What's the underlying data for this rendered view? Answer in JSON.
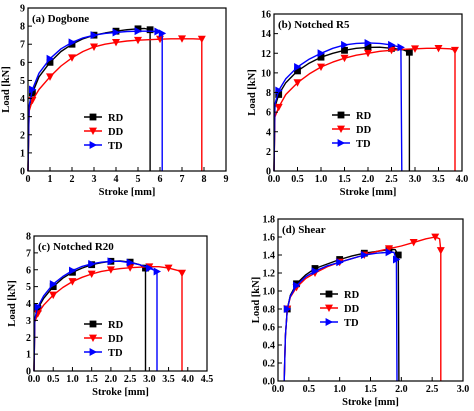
{
  "colors": {
    "RD": "#000000",
    "DD": "#ff0000",
    "TD": "#0000ff"
  },
  "chart_data": [
    {
      "type": "line",
      "title": "(a) Dogbone",
      "xlabel": "Stroke [mm]",
      "ylabel": "Load [kN]",
      "xlim": [
        0,
        9
      ],
      "ylim": [
        0,
        9
      ],
      "xticks": [
        "0",
        "1",
        "2",
        "3",
        "4",
        "5",
        "6",
        "7",
        "8",
        "9"
      ],
      "yticks": [
        "0",
        "1",
        "2",
        "3",
        "4",
        "5",
        "6",
        "7",
        "8",
        "9"
      ],
      "legend": "center-right",
      "series": [
        {
          "name": "RD",
          "marker": "square",
          "points": [
            [
              0,
              0
            ],
            [
              0.05,
              3.5
            ],
            [
              0.2,
              4.3
            ],
            [
              0.5,
              5.2
            ],
            [
              1,
              6.0
            ],
            [
              1.5,
              6.6
            ],
            [
              2,
              7.0
            ],
            [
              2.5,
              7.3
            ],
            [
              3,
              7.5
            ],
            [
              3.5,
              7.62
            ],
            [
              4,
              7.72
            ],
            [
              4.5,
              7.8
            ],
            [
              5,
              7.85
            ],
            [
              5.3,
              7.87
            ],
            [
              5.55,
              7.8
            ],
            [
              5.55,
              0
            ]
          ]
        },
        {
          "name": "DD",
          "marker": "triangle-down",
          "points": [
            [
              0,
              0
            ],
            [
              0.05,
              3.3
            ],
            [
              0.2,
              3.9
            ],
            [
              0.5,
              4.5
            ],
            [
              1,
              5.2
            ],
            [
              1.5,
              5.8
            ],
            [
              2,
              6.25
            ],
            [
              2.5,
              6.6
            ],
            [
              3,
              6.85
            ],
            [
              3.5,
              7.0
            ],
            [
              4,
              7.1
            ],
            [
              4.5,
              7.18
            ],
            [
              5,
              7.22
            ],
            [
              5.5,
              7.25
            ],
            [
              6,
              7.28
            ],
            [
              6.5,
              7.3
            ],
            [
              7,
              7.3
            ],
            [
              7.5,
              7.3
            ],
            [
              7.9,
              7.28
            ],
            [
              7.9,
              0
            ]
          ]
        },
        {
          "name": "TD",
          "marker": "triangle-right",
          "points": [
            [
              0,
              0
            ],
            [
              0.05,
              3.6
            ],
            [
              0.2,
              4.5
            ],
            [
              0.5,
              5.4
            ],
            [
              1,
              6.2
            ],
            [
              1.5,
              6.75
            ],
            [
              2,
              7.1
            ],
            [
              2.5,
              7.35
            ],
            [
              3,
              7.5
            ],
            [
              3.5,
              7.6
            ],
            [
              4,
              7.65
            ],
            [
              4.5,
              7.7
            ],
            [
              5,
              7.72
            ],
            [
              5.5,
              7.72
            ],
            [
              5.9,
              7.7
            ],
            [
              6.1,
              7.6
            ],
            [
              6.1,
              0
            ]
          ]
        }
      ]
    },
    {
      "type": "line",
      "title": "(b) Notched R5",
      "xlabel": "Stroke [mm]",
      "ylabel": "Load [kN]",
      "xlim": [
        0,
        4
      ],
      "ylim": [
        0,
        16
      ],
      "xticks": [
        "0.0",
        "0.5",
        "1.0",
        "1.5",
        "2.0",
        "2.5",
        "3.0",
        "3.5",
        "4.0"
      ],
      "yticks": [
        "0",
        "2",
        "4",
        "6",
        "8",
        "10",
        "12",
        "14",
        "16"
      ],
      "legend": "center-right",
      "series": [
        {
          "name": "RD",
          "marker": "square",
          "points": [
            [
              0,
              0
            ],
            [
              0.02,
              6.5
            ],
            [
              0.1,
              7.8
            ],
            [
              0.25,
              9.0
            ],
            [
              0.5,
              10.2
            ],
            [
              0.75,
              11.0
            ],
            [
              1.0,
              11.6
            ],
            [
              1.25,
              12.0
            ],
            [
              1.5,
              12.3
            ],
            [
              1.75,
              12.5
            ],
            [
              2.0,
              12.6
            ],
            [
              2.25,
              12.62
            ],
            [
              2.5,
              12.5
            ],
            [
              2.75,
              12.35
            ],
            [
              2.88,
              12.1
            ],
            [
              2.88,
              0
            ]
          ]
        },
        {
          "name": "DD",
          "marker": "triangle-down",
          "points": [
            [
              0,
              0
            ],
            [
              0.02,
              5.5
            ],
            [
              0.1,
              6.5
            ],
            [
              0.25,
              7.8
            ],
            [
              0.5,
              9.0
            ],
            [
              0.75,
              9.9
            ],
            [
              1.0,
              10.6
            ],
            [
              1.25,
              11.1
            ],
            [
              1.5,
              11.5
            ],
            [
              1.75,
              11.8
            ],
            [
              2.0,
              12.0
            ],
            [
              2.25,
              12.2
            ],
            [
              2.5,
              12.3
            ],
            [
              2.75,
              12.4
            ],
            [
              3.0,
              12.45
            ],
            [
              3.25,
              12.5
            ],
            [
              3.5,
              12.5
            ],
            [
              3.75,
              12.45
            ],
            [
              3.85,
              12.3
            ],
            [
              3.85,
              0
            ]
          ]
        },
        {
          "name": "TD",
          "marker": "triangle-right",
          "points": [
            [
              0,
              0
            ],
            [
              0.02,
              6.8
            ],
            [
              0.1,
              8.2
            ],
            [
              0.25,
              9.4
            ],
            [
              0.5,
              10.6
            ],
            [
              0.75,
              11.4
            ],
            [
              1.0,
              12.0
            ],
            [
              1.25,
              12.5
            ],
            [
              1.5,
              12.85
            ],
            [
              1.75,
              13.0
            ],
            [
              2.0,
              13.05
            ],
            [
              2.25,
              13.0
            ],
            [
              2.5,
              12.85
            ],
            [
              2.7,
              12.6
            ],
            [
              2.72,
              0
            ]
          ]
        }
      ]
    },
    {
      "type": "line",
      "title": "(c) Notched R20",
      "xlabel": "Stroke [mm]",
      "ylabel": "Load [kN]",
      "xlim": [
        0,
        4.5
      ],
      "ylim": [
        0,
        8
      ],
      "xticks": [
        "0.0",
        "0.5",
        "1.0",
        "1.5",
        "2.0",
        "2.5",
        "3.0",
        "3.5",
        "4.0",
        "4.5"
      ],
      "yticks": [
        "0",
        "1",
        "2",
        "3",
        "4",
        "5",
        "6",
        "7",
        "8"
      ],
      "legend": "bottom-center",
      "series": [
        {
          "name": "RD",
          "marker": "square",
          "points": [
            [
              0,
              0
            ],
            [
              0.02,
              3.0
            ],
            [
              0.1,
              3.7
            ],
            [
              0.25,
              4.3
            ],
            [
              0.5,
              5.0
            ],
            [
              0.75,
              5.5
            ],
            [
              1.0,
              5.85
            ],
            [
              1.25,
              6.1
            ],
            [
              1.5,
              6.3
            ],
            [
              1.75,
              6.42
            ],
            [
              2.0,
              6.5
            ],
            [
              2.25,
              6.52
            ],
            [
              2.5,
              6.45
            ],
            [
              2.75,
              6.3
            ],
            [
              2.9,
              6.1
            ],
            [
              2.9,
              0
            ]
          ]
        },
        {
          "name": "DD",
          "marker": "triangle-down",
          "points": [
            [
              0,
              0
            ],
            [
              0.02,
              2.9
            ],
            [
              0.1,
              3.4
            ],
            [
              0.25,
              3.9
            ],
            [
              0.5,
              4.5
            ],
            [
              0.75,
              4.95
            ],
            [
              1.0,
              5.3
            ],
            [
              1.25,
              5.55
            ],
            [
              1.5,
              5.75
            ],
            [
              1.75,
              5.9
            ],
            [
              2.0,
              6.0
            ],
            [
              2.25,
              6.07
            ],
            [
              2.5,
              6.12
            ],
            [
              2.75,
              6.15
            ],
            [
              3.0,
              6.18
            ],
            [
              3.25,
              6.18
            ],
            [
              3.5,
              6.1
            ],
            [
              3.75,
              5.95
            ],
            [
              3.85,
              5.8
            ],
            [
              3.85,
              0
            ]
          ]
        },
        {
          "name": "TD",
          "marker": "triangle-right",
          "points": [
            [
              0,
              0
            ],
            [
              0.02,
              3.1
            ],
            [
              0.1,
              3.8
            ],
            [
              0.25,
              4.45
            ],
            [
              0.5,
              5.15
            ],
            [
              0.75,
              5.6
            ],
            [
              1.0,
              5.95
            ],
            [
              1.25,
              6.2
            ],
            [
              1.5,
              6.35
            ],
            [
              1.75,
              6.45
            ],
            [
              2.0,
              6.5
            ],
            [
              2.25,
              6.5
            ],
            [
              2.5,
              6.42
            ],
            [
              2.75,
              6.3
            ],
            [
              3.0,
              6.1
            ],
            [
              3.2,
              5.9
            ],
            [
              3.2,
              0
            ]
          ]
        }
      ]
    },
    {
      "type": "line",
      "title": "(d) Shear",
      "xlabel": "Stroke [mm]",
      "ylabel": "Load [kN]",
      "xlim": [
        0,
        3
      ],
      "ylim": [
        0,
        1.8
      ],
      "xticks": [
        "0.0",
        "0.5",
        "1.0",
        "1.5",
        "2.0",
        "2.5",
        "3.0"
      ],
      "yticks": [
        "0.0",
        "0.2",
        "0.4",
        "0.6",
        "0.8",
        "1.0",
        "1.2",
        "1.4",
        "1.6",
        "1.8"
      ],
      "legend": "bottom-center",
      "series": [
        {
          "name": "RD",
          "marker": "square",
          "points": [
            [
              0.1,
              0
            ],
            [
              0.12,
              0.5
            ],
            [
              0.15,
              0.8
            ],
            [
              0.2,
              0.95
            ],
            [
              0.3,
              1.08
            ],
            [
              0.45,
              1.18
            ],
            [
              0.6,
              1.25
            ],
            [
              0.8,
              1.3
            ],
            [
              1.0,
              1.35
            ],
            [
              1.2,
              1.39
            ],
            [
              1.4,
              1.42
            ],
            [
              1.6,
              1.44
            ],
            [
              1.8,
              1.46
            ],
            [
              1.9,
              1.46
            ],
            [
              1.95,
              1.4
            ],
            [
              1.96,
              0
            ]
          ]
        },
        {
          "name": "DD",
          "marker": "triangle-down",
          "points": [
            [
              0.1,
              0
            ],
            [
              0.12,
              0.5
            ],
            [
              0.15,
              0.8
            ],
            [
              0.2,
              0.93
            ],
            [
              0.3,
              1.04
            ],
            [
              0.45,
              1.14
            ],
            [
              0.6,
              1.2
            ],
            [
              0.8,
              1.27
            ],
            [
              1.0,
              1.32
            ],
            [
              1.2,
              1.36
            ],
            [
              1.4,
              1.4
            ],
            [
              1.6,
              1.44
            ],
            [
              1.8,
              1.47
            ],
            [
              2.0,
              1.5
            ],
            [
              2.2,
              1.54
            ],
            [
              2.4,
              1.58
            ],
            [
              2.55,
              1.6
            ],
            [
              2.62,
              1.58
            ],
            [
              2.64,
              1.45
            ],
            [
              2.64,
              0
            ]
          ]
        },
        {
          "name": "TD",
          "marker": "triangle-right",
          "points": [
            [
              0.1,
              0
            ],
            [
              0.12,
              0.5
            ],
            [
              0.15,
              0.8
            ],
            [
              0.2,
              0.94
            ],
            [
              0.3,
              1.06
            ],
            [
              0.45,
              1.16
            ],
            [
              0.6,
              1.22
            ],
            [
              0.8,
              1.28
            ],
            [
              1.0,
              1.32
            ],
            [
              1.2,
              1.36
            ],
            [
              1.4,
              1.4
            ],
            [
              1.6,
              1.42
            ],
            [
              1.8,
              1.43
            ],
            [
              1.88,
              1.43
            ],
            [
              1.92,
              1.35
            ],
            [
              1.93,
              0
            ]
          ]
        }
      ]
    }
  ]
}
